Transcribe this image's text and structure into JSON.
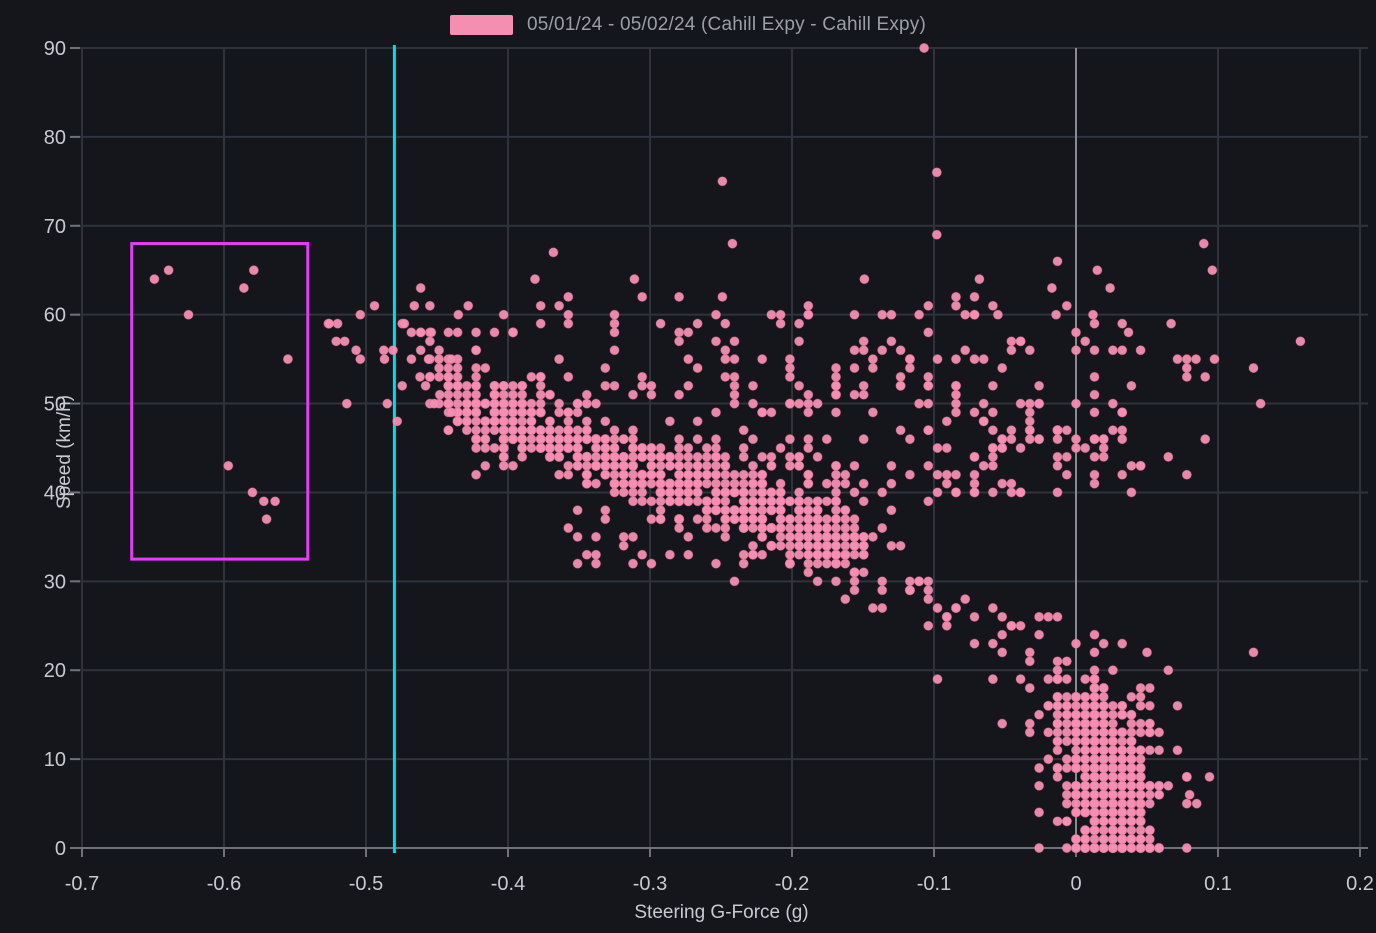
{
  "legend": {
    "label": "05/01/24 - 05/02/24 (Cahill Expy - Cahill Expy)",
    "swatch_color": "#f48fb1"
  },
  "axes": {
    "x_title": "Steering G-Force (g)",
    "y_title": "Speed (km/h)"
  },
  "colors": {
    "background": "#14161c",
    "grid": "#2f333c",
    "zero_line": "#878d96",
    "axis_line": "#6e737b",
    "tick": "#6e737b",
    "tick_label": "#c7cad0",
    "point": "#f48fb1",
    "point_edge": "#d9688f",
    "reference_line": "#00dde8",
    "selection_box": "#e23ff2"
  },
  "chart_data": {
    "type": "scatter",
    "title": "",
    "xlabel": "Steering G-Force (g)",
    "ylabel": "Speed (km/h)",
    "xlim": [
      -0.7,
      0.2
    ],
    "ylim": [
      0,
      90
    ],
    "grid": true,
    "legend_position": "top-center",
    "series_name": "05/01/24 - 05/02/24 (Cahill Expy - Cahill Expy)",
    "x_ticks": [
      {
        "v": -0.7,
        "label": "-0.7"
      },
      {
        "v": -0.6,
        "label": "-0.6"
      },
      {
        "v": -0.5,
        "label": "-0.5"
      },
      {
        "v": -0.4,
        "label": "-0.4"
      },
      {
        "v": -0.3,
        "label": "-0.3"
      },
      {
        "v": -0.2,
        "label": "-0.2"
      },
      {
        "v": -0.1,
        "label": "-0.1"
      },
      {
        "v": 0,
        "label": "0"
      },
      {
        "v": 0.1,
        "label": "0.1"
      },
      {
        "v": 0.2,
        "label": "0.2"
      }
    ],
    "y_ticks": [
      {
        "v": 0,
        "label": "0"
      },
      {
        "v": 10,
        "label": "10"
      },
      {
        "v": 20,
        "label": "20"
      },
      {
        "v": 30,
        "label": "30"
      },
      {
        "v": 40,
        "label": "40"
      },
      {
        "v": 50,
        "label": "50"
      },
      {
        "v": 60,
        "label": "60"
      },
      {
        "v": 70,
        "label": "70"
      },
      {
        "v": 80,
        "label": "80"
      },
      {
        "v": 90,
        "label": "90"
      }
    ],
    "annotations": {
      "reference_vertical_line": {
        "x": -0.48,
        "color": "#00dde8"
      },
      "selection_box": {
        "x0": -0.665,
        "x1": -0.541,
        "y0": 32.5,
        "y1": 68,
        "color": "#e23ff2"
      }
    },
    "outlier_points": [
      [
        -0.649,
        64
      ],
      [
        -0.639,
        65
      ],
      [
        -0.625,
        60
      ],
      [
        -0.586,
        63
      ],
      [
        -0.579,
        65
      ],
      [
        -0.555,
        55
      ],
      [
        -0.597,
        43
      ],
      [
        -0.58,
        40
      ],
      [
        -0.572,
        39
      ],
      [
        -0.564,
        39
      ],
      [
        -0.57,
        37
      ],
      [
        -0.526,
        59
      ],
      [
        -0.494,
        61
      ],
      [
        -0.466,
        61
      ],
      [
        -0.504,
        60
      ],
      [
        -0.52,
        59
      ],
      [
        -0.521,
        57
      ],
      [
        -0.515,
        57
      ],
      [
        -0.504,
        55
      ],
      [
        -0.487,
        55
      ],
      [
        -0.473,
        59
      ],
      [
        -0.454,
        58
      ],
      [
        -0.456,
        55
      ],
      [
        -0.44,
        55
      ],
      [
        -0.462,
        53
      ],
      [
        -0.458,
        52
      ],
      [
        -0.448,
        51
      ],
      [
        -0.452,
        50
      ],
      [
        -0.485,
        50
      ],
      [
        -0.478,
        48
      ],
      [
        -0.44,
        49
      ],
      [
        -0.435,
        60
      ],
      [
        -0.428,
        61
      ],
      [
        -0.381,
        64
      ],
      [
        -0.368,
        67
      ],
      [
        -0.311,
        64
      ],
      [
        -0.249,
        75
      ],
      [
        -0.249,
        62
      ],
      [
        -0.242,
        68
      ],
      [
        -0.149,
        64
      ],
      [
        -0.107,
        90
      ],
      [
        -0.098,
        76
      ],
      [
        -0.098,
        69
      ],
      [
        -0.068,
        64
      ],
      [
        -0.055,
        60
      ],
      [
        -0.013,
        66
      ],
      [
        -0.017,
        63
      ],
      [
        -0.014,
        60
      ],
      [
        0.012,
        60
      ],
      [
        0.015,
        65
      ],
      [
        0.024,
        63
      ],
      [
        0.037,
        58
      ],
      [
        0.067,
        59
      ],
      [
        0.09,
        68
      ],
      [
        0.096,
        65
      ],
      [
        0.125,
        54
      ],
      [
        0.158,
        57
      ],
      [
        0.05,
        22
      ],
      [
        0.125,
        22
      ],
      [
        0.08,
        6
      ],
      [
        0.085,
        5
      ],
      [
        0.094,
        8
      ]
    ],
    "clusters": [
      {
        "name": "band-core",
        "type": "band",
        "x0": -0.445,
        "y0": 50.5,
        "x1": -0.15,
        "y1": 33.5,
        "sy": 1.7,
        "sx": 0.004,
        "n": 520,
        "seed": 11
      },
      {
        "name": "band-halo",
        "type": "band",
        "x0": -0.45,
        "y0": 51.5,
        "x1": -0.135,
        "y1": 33.5,
        "sy": 3.8,
        "sx": 0.006,
        "n": 240,
        "seed": 22
      },
      {
        "name": "left-sparse",
        "type": "gauss",
        "cx": -0.47,
        "cy": 56.5,
        "sx": 0.025,
        "sy": 2.6,
        "n": 22,
        "seed": 33
      },
      {
        "name": "upper-scatter",
        "type": "uniform",
        "x": [
          -0.435,
          -0.06
        ],
        "y": [
          51.5,
          62.0
        ],
        "n": 88,
        "seed": 44
      },
      {
        "name": "below-band",
        "type": "uniform",
        "x": [
          -0.365,
          -0.1
        ],
        "y": [
          32.0,
          44.5
        ],
        "n": 58,
        "seed": 55
      },
      {
        "name": "mid-fill",
        "type": "uniform",
        "x": [
          -0.26,
          -0.1
        ],
        "y": [
          38.0,
          52.5
        ],
        "n": 75,
        "seed": 66
      },
      {
        "name": "right-mid",
        "type": "uniform",
        "x": [
          -0.105,
          0.045
        ],
        "y": [
          39.5,
          52.5
        ],
        "n": 95,
        "seed": 77
      },
      {
        "name": "right-upper",
        "type": "uniform",
        "x": [
          -0.1,
          0.035
        ],
        "y": [
          52.5,
          62.0
        ],
        "n": 26,
        "seed": 88
      },
      {
        "name": "far-right",
        "type": "uniform",
        "x": [
          0.045,
          0.135
        ],
        "y": [
          41.0,
          59.0
        ],
        "n": 13,
        "seed": 99
      },
      {
        "name": "descent",
        "type": "band",
        "x0": -0.125,
        "y0": 30.0,
        "x1": -0.005,
        "y1": 20.5,
        "sy": 2.2,
        "sx": 0.006,
        "n": 38,
        "seed": 111
      },
      {
        "name": "blob-top",
        "type": "gauss",
        "cx": 0.012,
        "cy": 14.0,
        "sx": 0.017,
        "sy": 3.2,
        "n": 140,
        "seed": 122
      },
      {
        "name": "blob-core",
        "type": "gauss",
        "cx": 0.027,
        "cy": 6.0,
        "sx": 0.015,
        "sy": 3.6,
        "n": 340,
        "seed": 133
      },
      {
        "name": "blob-halo",
        "type": "gauss",
        "cx": 0.02,
        "cy": 9.5,
        "sx": 0.031,
        "sy": 6.0,
        "n": 95,
        "seed": 144
      },
      {
        "name": "zero-row",
        "type": "uniform",
        "x": [
          -0.002,
          0.058
        ],
        "y": [
          0.0,
          0.4
        ],
        "n": 26,
        "seed": 155
      }
    ]
  }
}
